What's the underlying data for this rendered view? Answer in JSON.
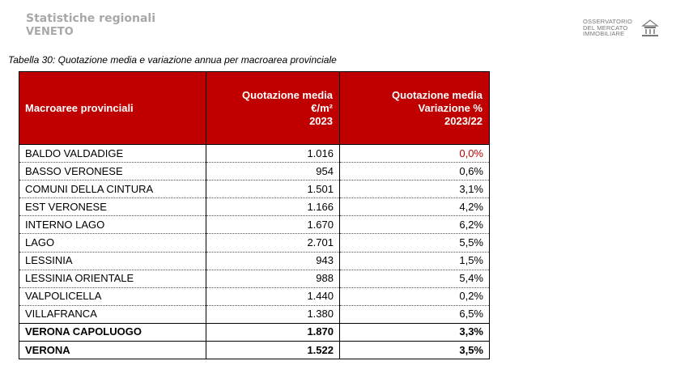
{
  "header": {
    "line1": "Statistiche regionali",
    "line2": "VENETO"
  },
  "logo": {
    "line1": "OSSERVATORIO",
    "line2": "DEL MERCATO",
    "line3": "IMMOBILIARE",
    "icon": "building-icon"
  },
  "caption": "Tabella 30: Quotazione media e variazione annua per macroarea provinciale",
  "table": {
    "headers": [
      {
        "lines": [
          "Macroaree provinciali"
        ]
      },
      {
        "lines": [
          "Quotazione media",
          "€/m²",
          "2023"
        ]
      },
      {
        "lines": [
          "Quotazione media",
          "Variazione %",
          "2023/22"
        ]
      }
    ],
    "rows": [
      {
        "name": "BALDO VALDADIGE",
        "value": "1.016",
        "var": "0,0%"
      },
      {
        "name": "BASSO VERONESE",
        "value": "954",
        "var": "0,6%"
      },
      {
        "name": "COMUNI DELLA CINTURA",
        "value": "1.501",
        "var": "3,1%"
      },
      {
        "name": "EST VERONESE",
        "value": "1.166",
        "var": "4,2%"
      },
      {
        "name": "INTERNO LAGO",
        "value": "1.670",
        "var": "6,2%"
      },
      {
        "name": "LAGO",
        "value": "2.701",
        "var": "5,5%"
      },
      {
        "name": "LESSINIA",
        "value": "943",
        "var": "1,5%"
      },
      {
        "name": "LESSINIA ORIENTALE",
        "value": "988",
        "var": "5,4%"
      },
      {
        "name": "VALPOLICELLA",
        "value": "1.440",
        "var": "0,2%"
      },
      {
        "name": "VILLAFRANCA",
        "value": "1.380",
        "var": "6,5%"
      },
      {
        "name": "VERONA CAPOLUOGO",
        "value": "1.870",
        "var": "3,3%"
      },
      {
        "name": "VERONA",
        "value": "1.522",
        "var": "3,5%"
      }
    ]
  },
  "colors": {
    "header_bg": "#c00000",
    "header_text": "#ffffff",
    "muted": "#a8a8a8"
  }
}
